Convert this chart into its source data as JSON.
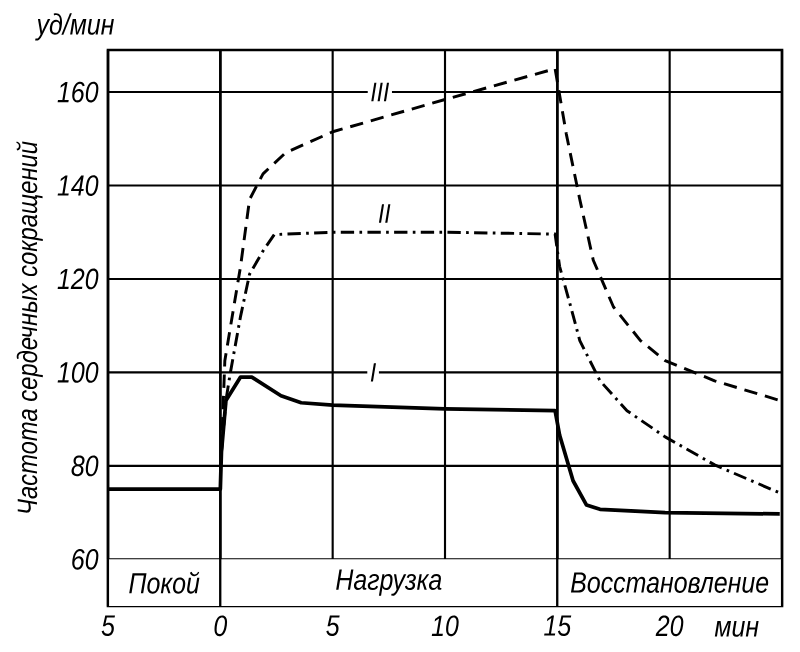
{
  "chart_data": {
    "type": "line",
    "xlabel": "мин",
    "ylabel": "Частота сердечных сокращений",
    "annotations": [
      "уд/мин",
      {
        "text": "I",
        "x": 6.8,
        "y": 100
      },
      {
        "text": "II",
        "x": 7.3,
        "y": 134
      },
      {
        "text": "III",
        "x": 7.1,
        "y": 160
      }
    ],
    "xlim": [
      -5,
      25
    ],
    "ylim": [
      50,
      169
    ],
    "xticks": [
      {
        "value": -5,
        "label": "5"
      },
      0,
      5,
      10,
      15,
      20
    ],
    "yticks": [
      60,
      80,
      100,
      120,
      140,
      160
    ],
    "grid": true,
    "marker": "none",
    "bands": [
      {
        "axis": "x",
        "from": -5,
        "to": 0,
        "label": "Покой",
        "color": "#ffffff"
      },
      {
        "axis": "x",
        "from": 0,
        "to": 15,
        "label": "Нагрузка",
        "color": "#ffffff"
      },
      {
        "axis": "x",
        "from": 15,
        "to": 25,
        "label": "Восстановление",
        "color": "#ffffff"
      }
    ],
    "series": [
      {
        "color": "#000000",
        "line_style": "solid",
        "x": [
          -5,
          0,
          0.05,
          0.25,
          0.9,
          1.4,
          2.7,
          3.6,
          5,
          10,
          14.9,
          15.1,
          15.7,
          16.3,
          16.9,
          19.8,
          24.9
        ],
        "values": [
          75,
          75,
          83,
          94,
          99,
          99,
          95,
          93.5,
          93,
          92.2,
          91.8,
          86.6,
          76.8,
          71.6,
          70.7,
          70,
          69.7
        ]
      },
      {
        "color": "#000000",
        "line_style": "dashdot",
        "x": [
          0.05,
          0.25,
          0.43,
          0.9,
          1.3,
          1.9,
          2.4,
          5,
          10,
          14.9,
          15.1,
          15.6,
          16.0,
          16.9,
          18.1,
          19.8,
          22.0,
          24.9
        ],
        "values": [
          83,
          94,
          99.5,
          112,
          121,
          126,
          129.5,
          130,
          130,
          129.6,
          122.7,
          114,
          106.8,
          98.2,
          91.8,
          86.2,
          80.2,
          74.2
        ]
      },
      {
        "color": "#000000",
        "line_style": "dashed",
        "x": [
          0.05,
          0.2,
          0.9,
          1.3,
          1.9,
          2.9,
          5,
          10,
          14.9,
          15.4,
          16.0,
          16.6,
          17.5,
          18.7,
          19.8,
          22.0,
          24.9
        ],
        "values": [
          83,
          102.5,
          122.7,
          137,
          142.5,
          147,
          151.5,
          158.4,
          165,
          151,
          137,
          124,
          114,
          106.8,
          102.5,
          98.2,
          94
        ]
      }
    ]
  }
}
